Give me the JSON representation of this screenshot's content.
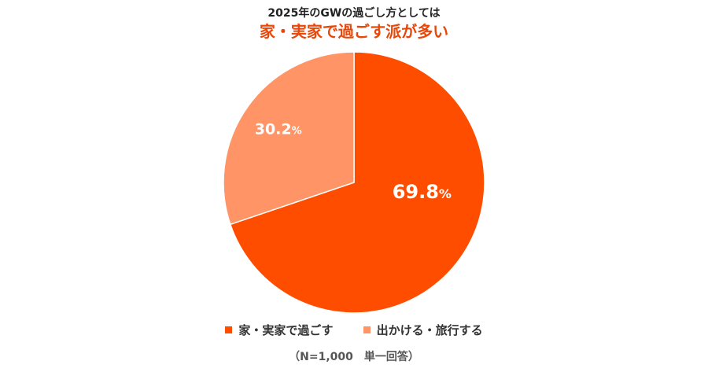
{
  "title": "2025年のGWの過ごし方としては",
  "subtitle": "家・実家で過ごす派が多い",
  "note": "（N=1,000　単一回答）",
  "colors": {
    "subtitle": "#e8470a",
    "slice_home": "#ff4d00",
    "slice_out": "#ff9566",
    "label_text": "#ffffff"
  },
  "chart_data": {
    "type": "pie",
    "title": "2025年のGWの過ごし方としては",
    "subtitle": "家・実家で過ごす派が多い",
    "slices": [
      {
        "name": "家・実家で過ごす",
        "value": 69.8,
        "label": "69.8",
        "unit": "%"
      },
      {
        "name": "出かける・旅行する",
        "value": 30.2,
        "label": "30.2",
        "unit": "%"
      }
    ],
    "start_angle": "12 o'clock",
    "direction": "clockwise",
    "legend_position": "bottom"
  }
}
